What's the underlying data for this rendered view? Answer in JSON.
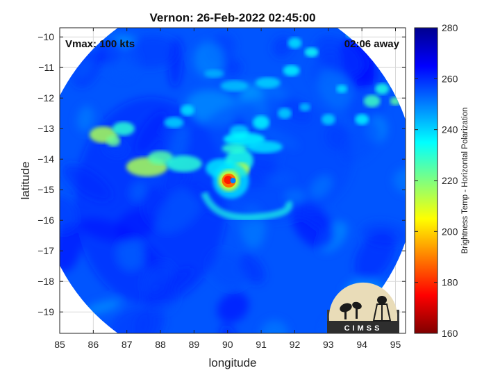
{
  "title": "Vernon: 26-Feb-2022 02:45:00",
  "vmax_label": "Vmax: 100 kts",
  "time_away_label": "02:06 away",
  "logo_text": "CIMSS",
  "chart_data": {
    "type": "heatmap",
    "title": "Vernon: 26-Feb-2022 02:45:00",
    "xlabel": "longitude",
    "ylabel": "latitude",
    "xlim": [
      85,
      95.3
    ],
    "ylim": [
      -19.7,
      -9.7
    ],
    "x_ticks": [
      85,
      86,
      87,
      88,
      89,
      90,
      91,
      92,
      93,
      94,
      95
    ],
    "y_ticks": [
      -10,
      -11,
      -12,
      -13,
      -14,
      -15,
      -16,
      -17,
      -18,
      -19
    ],
    "grid": true,
    "colorbar": {
      "label": "Brightness Temp - Horizontal Polarization",
      "range": [
        160,
        280
      ],
      "ticks": [
        160,
        180,
        200,
        220,
        240,
        260,
        280
      ],
      "colormap": "jet"
    },
    "storm_center": {
      "lon": 90.1,
      "lat": -14.7
    },
    "swath_center": {
      "lon": 90.0,
      "lat": -14.7
    },
    "swath_radius_deg": 5.6,
    "background_value": 255
  }
}
